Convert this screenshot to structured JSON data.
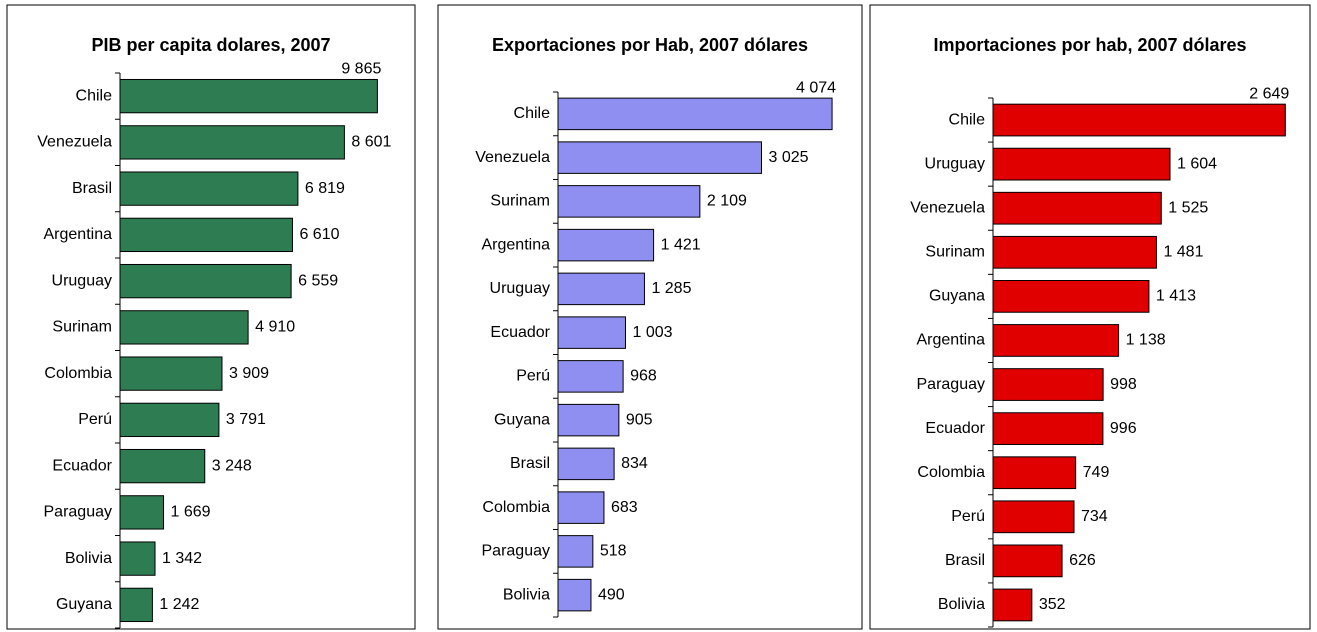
{
  "chart_data": [
    {
      "type": "bar",
      "orientation": "horizontal",
      "title": "PIB per capita dolares, 2007",
      "categories": [
        "Chile",
        "Venezuela",
        "Brasil",
        "Argentina",
        "Uruguay",
        "Surinam",
        "Colombia",
        "Perú",
        "Ecuador",
        "Paraguay",
        "Bolivia",
        "Guyana"
      ],
      "values": [
        9865,
        8601,
        6819,
        6610,
        6559,
        4910,
        3909,
        3791,
        3248,
        1669,
        1342,
        1242
      ],
      "value_labels": [
        "9 865",
        "8 601",
        "6 819",
        "6 610",
        "6 559",
        "4 910",
        "3 909",
        "3 791",
        "3 248",
        "1 669",
        "1 342",
        "1 242"
      ],
      "color": "#2e7d52",
      "xlim": [
        0,
        11000
      ]
    },
    {
      "type": "bar",
      "orientation": "horizontal",
      "title": "Exportaciones por Hab, 2007 dólares",
      "categories": [
        "Chile",
        "Venezuela",
        "Surinam",
        "Argentina",
        "Uruguay",
        "Ecuador",
        "Perú",
        "Guyana",
        "Brasil",
        "Colombia",
        "Paraguay",
        "Bolivia"
      ],
      "values": [
        4074,
        3025,
        2109,
        1421,
        1285,
        1003,
        968,
        905,
        834,
        683,
        518,
        490
      ],
      "value_labels": [
        "4 074",
        "3 025",
        "2 109",
        "1 421",
        "1 285",
        "1 003",
        "968",
        "905",
        "834",
        "683",
        "518",
        "490"
      ],
      "color": "#8f8ff2",
      "xlim": [
        0,
        4400
      ]
    },
    {
      "type": "bar",
      "orientation": "horizontal",
      "title": "Importaciones por hab, 2007 dólares",
      "categories": [
        "Chile",
        "Uruguay",
        "Venezuela",
        "Surinam",
        "Guyana",
        "Argentina",
        "Paraguay",
        "Ecuador",
        "Colombia",
        "Perú",
        "Brasil",
        "Bolivia"
      ],
      "values": [
        2649,
        1604,
        1525,
        1481,
        1413,
        1138,
        998,
        996,
        749,
        734,
        626,
        352
      ],
      "value_labels": [
        "2 649",
        "1 604",
        "1 525",
        "1 481",
        "1 413",
        "1 138",
        "998",
        "996",
        "749",
        "734",
        "626",
        "352"
      ],
      "color": "#e00000",
      "xlim": [
        0,
        2800
      ]
    }
  ]
}
